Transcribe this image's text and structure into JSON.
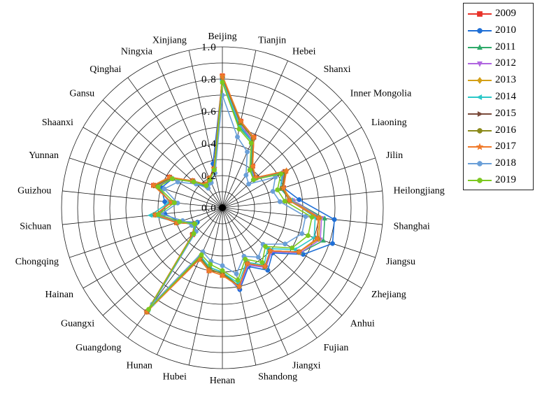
{
  "chart_data": {
    "type": "radar",
    "title": "",
    "categories": [
      "Beijing",
      "Tianjin",
      "Hebei",
      "Shanxi",
      "Inner Mongolia",
      "Liaoning",
      "Jilin",
      "Heilongjiang",
      "Shanghai",
      "Jiangsu",
      "Zhejiang",
      "Anhui",
      "Fujian",
      "Jiangxi",
      "Shandong",
      "Henan",
      "Hubei",
      "Hunan",
      "Guangdong",
      "Guangxi",
      "Hainan",
      "Chongqing",
      "Sichuan",
      "Guizhou",
      "Yunnan",
      "Shaanxi",
      "Gansu",
      "Qinghai",
      "Ningxia",
      "Xinjiang"
    ],
    "radial_ticks": [
      "0.0",
      "0.2",
      "0.4",
      "0.6",
      "0.8",
      "1.0"
    ],
    "rlim": [
      0,
      1
    ],
    "grid": true,
    "legend_position": "top-right",
    "series": [
      {
        "name": "2009",
        "color": "#e8332a",
        "marker": "square",
        "values": [
          0.82,
          0.55,
          0.48,
          0.32,
          0.28,
          0.45,
          0.4,
          0.42,
          0.6,
          0.62,
          0.55,
          0.4,
          0.45,
          0.38,
          0.5,
          0.42,
          0.4,
          0.35,
          0.8,
          0.25,
          0.2,
          0.3,
          0.42,
          0.32,
          0.45,
          0.38,
          0.25,
          0.18,
          0.2,
          0.25
        ]
      },
      {
        "name": "2010",
        "color": "#1f6fd6",
        "marker": "circle",
        "values": [
          0.8,
          0.52,
          0.46,
          0.3,
          0.26,
          0.43,
          0.4,
          0.48,
          0.7,
          0.72,
          0.58,
          0.42,
          0.48,
          0.4,
          0.52,
          0.4,
          0.38,
          0.33,
          0.8,
          0.24,
          0.18,
          0.28,
          0.36,
          0.36,
          0.4,
          0.36,
          0.24,
          0.16,
          0.18,
          0.28
        ]
      },
      {
        "name": "2011",
        "color": "#2eaa6a",
        "marker": "triangle-up",
        "values": [
          0.78,
          0.51,
          0.45,
          0.3,
          0.27,
          0.43,
          0.38,
          0.44,
          0.64,
          0.66,
          0.56,
          0.4,
          0.46,
          0.38,
          0.5,
          0.4,
          0.38,
          0.34,
          0.79,
          0.24,
          0.19,
          0.29,
          0.4,
          0.33,
          0.42,
          0.37,
          0.24,
          0.17,
          0.19,
          0.25
        ]
      },
      {
        "name": "2012",
        "color": "#b065e0",
        "marker": "triangle-down",
        "values": [
          0.8,
          0.53,
          0.46,
          0.31,
          0.27,
          0.44,
          0.39,
          0.44,
          0.62,
          0.64,
          0.56,
          0.41,
          0.46,
          0.39,
          0.51,
          0.41,
          0.39,
          0.34,
          0.8,
          0.24,
          0.19,
          0.29,
          0.41,
          0.33,
          0.43,
          0.37,
          0.24,
          0.17,
          0.19,
          0.25
        ]
      },
      {
        "name": "2013",
        "color": "#d4a017",
        "marker": "diamond",
        "values": [
          0.82,
          0.55,
          0.48,
          0.32,
          0.28,
          0.46,
          0.4,
          0.43,
          0.61,
          0.63,
          0.55,
          0.4,
          0.45,
          0.38,
          0.5,
          0.42,
          0.4,
          0.35,
          0.8,
          0.25,
          0.2,
          0.3,
          0.42,
          0.32,
          0.45,
          0.38,
          0.25,
          0.18,
          0.2,
          0.25
        ]
      },
      {
        "name": "2014",
        "color": "#2bc8c8",
        "marker": "triangle-left",
        "values": [
          0.79,
          0.52,
          0.45,
          0.3,
          0.26,
          0.43,
          0.38,
          0.43,
          0.58,
          0.6,
          0.52,
          0.38,
          0.44,
          0.37,
          0.48,
          0.4,
          0.38,
          0.33,
          0.78,
          0.24,
          0.19,
          0.29,
          0.45,
          0.33,
          0.42,
          0.36,
          0.24,
          0.17,
          0.19,
          0.24
        ]
      },
      {
        "name": "2015",
        "color": "#7a4a3a",
        "marker": "triangle-right",
        "values": [
          0.81,
          0.54,
          0.47,
          0.31,
          0.28,
          0.45,
          0.39,
          0.42,
          0.6,
          0.62,
          0.55,
          0.4,
          0.45,
          0.38,
          0.5,
          0.41,
          0.39,
          0.34,
          0.8,
          0.25,
          0.2,
          0.3,
          0.42,
          0.32,
          0.44,
          0.37,
          0.25,
          0.18,
          0.2,
          0.25
        ]
      },
      {
        "name": "2016",
        "color": "#8b8a1a",
        "marker": "circle",
        "values": [
          0.81,
          0.54,
          0.47,
          0.31,
          0.28,
          0.45,
          0.39,
          0.42,
          0.6,
          0.62,
          0.55,
          0.4,
          0.45,
          0.38,
          0.5,
          0.41,
          0.39,
          0.34,
          0.8,
          0.25,
          0.2,
          0.3,
          0.42,
          0.32,
          0.44,
          0.37,
          0.25,
          0.18,
          0.2,
          0.25
        ]
      },
      {
        "name": "2017",
        "color": "#f07a2a",
        "marker": "star",
        "values": [
          0.82,
          0.55,
          0.48,
          0.32,
          0.28,
          0.46,
          0.4,
          0.42,
          0.6,
          0.62,
          0.55,
          0.4,
          0.45,
          0.38,
          0.5,
          0.42,
          0.4,
          0.35,
          0.8,
          0.25,
          0.2,
          0.3,
          0.42,
          0.32,
          0.45,
          0.38,
          0.25,
          0.18,
          0.2,
          0.25
        ]
      },
      {
        "name": "2018",
        "color": "#6a9fd8",
        "marker": "circle",
        "values": [
          0.7,
          0.45,
          0.38,
          0.25,
          0.22,
          0.38,
          0.33,
          0.36,
          0.52,
          0.52,
          0.45,
          0.34,
          0.38,
          0.33,
          0.42,
          0.36,
          0.34,
          0.3,
          0.74,
          0.22,
          0.22,
          0.26,
          0.38,
          0.28,
          0.38,
          0.32,
          0.22,
          0.15,
          0.17,
          0.22
        ]
      },
      {
        "name": "2019",
        "color": "#7cc820",
        "marker": "circle",
        "values": [
          0.78,
          0.5,
          0.44,
          0.29,
          0.26,
          0.42,
          0.36,
          0.39,
          0.56,
          0.56,
          0.5,
          0.36,
          0.42,
          0.35,
          0.46,
          0.39,
          0.36,
          0.32,
          0.78,
          0.24,
          0.2,
          0.28,
          0.4,
          0.3,
          0.42,
          0.36,
          0.24,
          0.17,
          0.19,
          0.24
        ]
      }
    ]
  }
}
